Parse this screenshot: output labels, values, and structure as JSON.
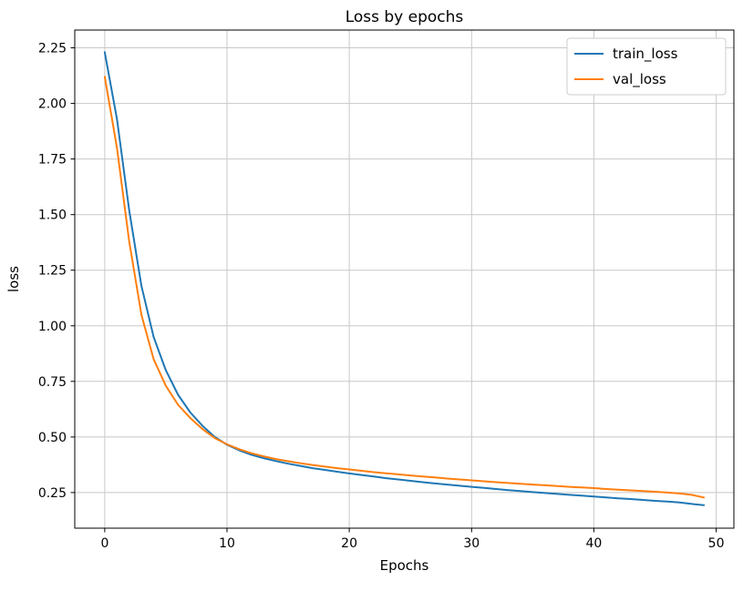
{
  "chart_data": {
    "type": "line",
    "title": "Loss by epochs",
    "xlabel": "Epochs",
    "ylabel": "loss",
    "grid": true,
    "legend_position": "upper right",
    "xlim": [
      -2.45,
      51.45
    ],
    "ylim": [
      0.09,
      2.33
    ],
    "xticks": [
      0,
      10,
      20,
      30,
      40,
      50
    ],
    "xtick_labels": [
      "0",
      "10",
      "20",
      "30",
      "40",
      "50"
    ],
    "yticks": [
      0.25,
      0.5,
      0.75,
      1.0,
      1.25,
      1.5,
      1.75,
      2.0,
      2.25
    ],
    "ytick_labels": [
      "0.25",
      "0.50",
      "0.75",
      "1.00",
      "1.25",
      "1.50",
      "1.75",
      "2.00",
      "2.25"
    ],
    "x": [
      0,
      1,
      2,
      3,
      4,
      5,
      6,
      7,
      8,
      9,
      10,
      11,
      12,
      13,
      14,
      15,
      16,
      17,
      18,
      19,
      20,
      21,
      22,
      23,
      24,
      25,
      26,
      27,
      28,
      29,
      30,
      31,
      32,
      33,
      34,
      35,
      36,
      37,
      38,
      39,
      40,
      41,
      42,
      43,
      44,
      45,
      46,
      47,
      48,
      49
    ],
    "series": [
      {
        "name": "train_loss",
        "color": "#1f77b4",
        "values": [
          2.23,
          1.93,
          1.52,
          1.18,
          0.95,
          0.8,
          0.69,
          0.61,
          0.55,
          0.5,
          0.465,
          0.44,
          0.42,
          0.405,
          0.392,
          0.38,
          0.37,
          0.36,
          0.352,
          0.344,
          0.336,
          0.329,
          0.322,
          0.315,
          0.309,
          0.303,
          0.297,
          0.291,
          0.286,
          0.281,
          0.276,
          0.271,
          0.266,
          0.261,
          0.257,
          0.252,
          0.248,
          0.244,
          0.24,
          0.236,
          0.232,
          0.228,
          0.224,
          0.221,
          0.217,
          0.213,
          0.21,
          0.206,
          0.199,
          0.193
        ]
      },
      {
        "name": "val_loss",
        "color": "#ff7f0e",
        "values": [
          2.12,
          1.8,
          1.38,
          1.05,
          0.85,
          0.73,
          0.645,
          0.585,
          0.535,
          0.495,
          0.467,
          0.445,
          0.427,
          0.413,
          0.401,
          0.391,
          0.382,
          0.374,
          0.367,
          0.36,
          0.354,
          0.348,
          0.342,
          0.337,
          0.332,
          0.327,
          0.322,
          0.318,
          0.313,
          0.309,
          0.305,
          0.301,
          0.297,
          0.293,
          0.29,
          0.286,
          0.283,
          0.279,
          0.276,
          0.273,
          0.27,
          0.266,
          0.263,
          0.26,
          0.257,
          0.254,
          0.25,
          0.246,
          0.24,
          0.228
        ]
      }
    ],
    "colors": {
      "grid": "#c8c8c8",
      "spine": "#000000",
      "legend_edge": "#cccccc",
      "background": "#ffffff"
    }
  }
}
